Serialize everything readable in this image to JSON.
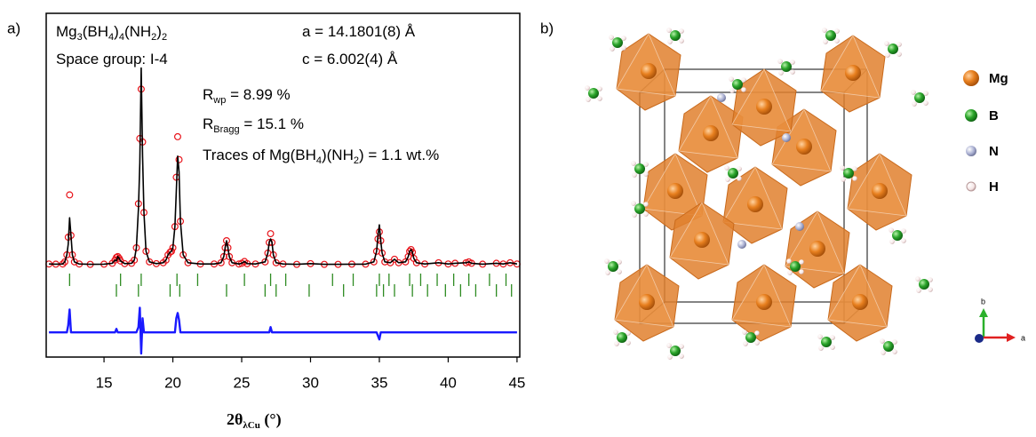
{
  "panel_labels": [
    "a)",
    "b)"
  ],
  "chart_data": {
    "type": "line",
    "x": [
      11,
      11.5,
      12,
      12.15,
      12.3,
      12.4,
      12.5,
      12.6,
      12.7,
      12.85,
      13.2,
      14,
      15,
      15.6,
      15.8,
      15.9,
      16.0,
      16.1,
      16.2,
      16.5,
      17,
      17.2,
      17.35,
      17.5,
      17.6,
      17.7,
      17.8,
      17.9,
      18.05,
      18.3,
      18.8,
      19.3,
      19.5,
      19.65,
      19.8,
      19.9,
      20.0,
      20.15,
      20.25,
      20.35,
      20.45,
      20.55,
      20.75,
      21.1,
      22,
      23,
      23.5,
      23.7,
      23.8,
      23.9,
      24.0,
      24.1,
      24.3,
      24.8,
      25.0,
      25.2,
      25.4,
      26,
      26.7,
      26.9,
      27.0,
      27.1,
      27.2,
      27.3,
      27.5,
      28,
      29,
      30,
      31,
      32,
      33,
      34,
      34.6,
      34.8,
      34.9,
      35.0,
      35.1,
      35.2,
      35.4,
      35.8,
      36.1,
      36.4,
      36.9,
      37.1,
      37.2,
      37.3,
      37.4,
      37.5,
      37.7,
      38.3,
      39.3,
      40,
      40.5,
      41.3,
      41.5,
      41.7,
      42.5,
      43.5,
      44,
      44.5,
      45
    ],
    "series": [
      {
        "style": "markers",
        "color": "#e8141b",
        "values": [
          0.8,
          0.7,
          0.8,
          2,
          6,
          16,
          40,
          17,
          6,
          2,
          0.8,
          0.6,
          0.7,
          1.2,
          3,
          4.5,
          5,
          4,
          2.5,
          1,
          1.2,
          3,
          10,
          35,
          72,
          100,
          70,
          30,
          8,
          2,
          1,
          1.5,
          3,
          6,
          7.5,
          8,
          10,
          22,
          50,
          73,
          60,
          25,
          6,
          1.5,
          0.8,
          0.8,
          1.5,
          5,
          10,
          14,
          10,
          5,
          1.5,
          0.8,
          1.2,
          2.2,
          1,
          0.8,
          2,
          7,
          13,
          18,
          13,
          6,
          1.5,
          0.8,
          0.6,
          1,
          0.6,
          0.6,
          0.7,
          0.7,
          2,
          8,
          15,
          19,
          14,
          7,
          2,
          1.5,
          3.5,
          1.5,
          2,
          5,
          8,
          9,
          7.5,
          4,
          1.5,
          0.8,
          1.5,
          0.8,
          1.2,
          1.5,
          2,
          1.2,
          0.7,
          1.2,
          0.8,
          1.5,
          0.8
        ]
      },
      {
        "style": "line",
        "color": "#000000",
        "values": [
          0.8,
          0.7,
          0.8,
          2,
          6,
          12,
          27,
          17,
          6,
          2,
          0.8,
          0.6,
          0.7,
          1.2,
          3,
          2.5,
          5,
          4,
          2.5,
          1,
          1.2,
          3,
          10,
          32,
          58,
          112,
          62,
          30,
          8,
          2,
          1,
          1.5,
          3,
          6,
          7.5,
          8,
          10,
          22,
          42,
          62,
          53,
          25,
          6,
          1.5,
          0.8,
          0.8,
          1.5,
          5,
          10,
          14,
          10,
          5,
          1.5,
          0.8,
          1.2,
          2.2,
          1,
          0.8,
          2,
          7,
          13,
          15,
          13,
          6,
          1.5,
          0.8,
          0.6,
          1,
          0.6,
          0.6,
          0.7,
          0.7,
          2,
          8,
          17,
          23,
          14,
          7,
          2,
          1.5,
          3.5,
          1.5,
          2,
          5,
          8,
          9,
          7.5,
          4,
          1.5,
          0.8,
          1.5,
          0.8,
          1.2,
          1.5,
          2,
          1.2,
          0.7,
          1.2,
          0.8,
          1.5,
          0.8
        ]
      },
      {
        "style": "line",
        "color": "#1a1aff",
        "values": [
          -38,
          -38,
          -38,
          -38,
          -38,
          -34,
          -25,
          -38,
          -38,
          -38,
          -38,
          -38,
          -38,
          -38,
          -38,
          -36,
          -38,
          -38,
          -38,
          -38,
          -38,
          -38,
          -38,
          -35,
          -24,
          -50,
          -30,
          -38,
          -38,
          -38,
          -38,
          -38,
          -38,
          -38,
          -38,
          -38,
          -38,
          -38,
          -30,
          -27,
          -31,
          -38,
          -38,
          -38,
          -38,
          -38,
          -38,
          -38,
          -38,
          -38,
          -38,
          -38,
          -38,
          -38,
          -38,
          -38,
          -38,
          -38,
          -38,
          -38,
          -38,
          -35,
          -38,
          -38,
          -38,
          -38,
          -38,
          -38,
          -38,
          -38,
          -38,
          -38,
          -38,
          -38,
          -40,
          -42,
          -38,
          -38,
          -38,
          -38,
          -38,
          -38,
          -38,
          -38,
          -38,
          -38,
          -38,
          -38,
          -38,
          -38,
          -38,
          -38,
          -38,
          -38,
          -38,
          -38,
          -38,
          -38,
          -38,
          -38,
          -38
        ]
      }
    ],
    "reflections": {
      "color": "#2e8b22",
      "x": [
        12.5,
        15.9,
        16.2,
        17.5,
        17.7,
        19.8,
        20.3,
        20.5,
        21.8,
        23.9,
        25.2,
        26.7,
        27.1,
        27.5,
        28.2,
        29.9,
        31.6,
        32.4,
        33.1,
        34.8,
        35.0,
        35.3,
        35.7,
        36.1,
        37.2,
        37.4,
        38.0,
        38.5,
        39.2,
        39.8,
        40.4,
        40.9,
        41.5,
        42.0,
        43.0,
        43.5,
        44.2,
        44.6
      ]
    },
    "xlim": [
      10.8,
      45.2
    ],
    "ylim": [
      -52,
      143
    ],
    "xticks": [
      15,
      20,
      25,
      30,
      35,
      40,
      45
    ],
    "xlabel": [
      "2θ",
      "λCu",
      " (°)"
    ],
    "annotations": [
      [
        "Mg",
        "3",
        "(BH",
        "4",
        ")",
        "4",
        "(NH",
        "2",
        ")",
        "2"
      ],
      [
        "Space group: I-4"
      ],
      [
        "a = 14.1801(8) Å"
      ],
      [
        "c = 6.002(4) Å"
      ],
      [
        "R",
        "wp",
        " = 8.99 %"
      ],
      [
        "R",
        "Bragg",
        " = 15.1 %"
      ],
      [
        "Traces of Mg(BH",
        "4",
        ")(NH",
        "2",
        ") = 1.1 wt.%"
      ]
    ]
  },
  "structure": {
    "legend": [
      "Mg",
      "B",
      "N",
      "H"
    ],
    "axes": [
      "b",
      "a"
    ]
  }
}
